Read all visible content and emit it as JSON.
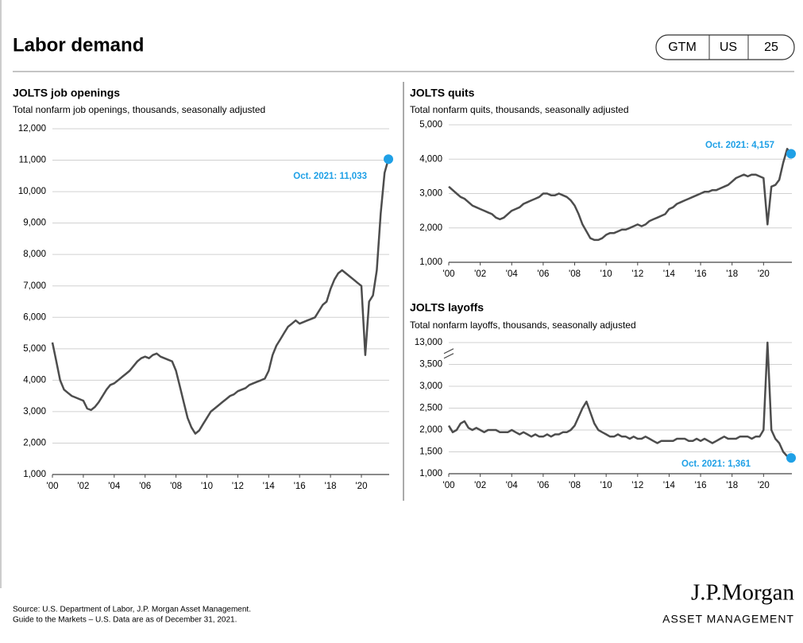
{
  "header": {
    "title": "Labor demand",
    "badge": [
      "GTM",
      "US",
      "25"
    ]
  },
  "chart_data": [
    {
      "type": "line",
      "title": "JOLTS job openings",
      "subtitle": "Total nonfarm job openings, thousands, seasonally adjusted",
      "x": [
        2000,
        2000.25,
        2000.5,
        2000.75,
        2001,
        2001.25,
        2001.5,
        2001.75,
        2002,
        2002.25,
        2002.5,
        2002.75,
        2003,
        2003.25,
        2003.5,
        2003.75,
        2004,
        2004.25,
        2004.5,
        2004.75,
        2005,
        2005.25,
        2005.5,
        2005.75,
        2006,
        2006.25,
        2006.5,
        2006.75,
        2007,
        2007.25,
        2007.5,
        2007.75,
        2008,
        2008.25,
        2008.5,
        2008.75,
        2009,
        2009.25,
        2009.5,
        2009.75,
        2010,
        2010.25,
        2010.5,
        2010.75,
        2011,
        2011.25,
        2011.5,
        2011.75,
        2012,
        2012.25,
        2012.5,
        2012.75,
        2013,
        2013.25,
        2013.5,
        2013.75,
        2014,
        2014.25,
        2014.5,
        2014.75,
        2015,
        2015.25,
        2015.5,
        2015.75,
        2016,
        2016.25,
        2016.5,
        2016.75,
        2017,
        2017.25,
        2017.5,
        2017.75,
        2018,
        2018.25,
        2018.5,
        2018.75,
        2019,
        2019.25,
        2019.5,
        2019.75,
        2020,
        2020.25,
        2020.5,
        2020.75,
        2021,
        2021.25,
        2021.5,
        2021.75
      ],
      "series": [
        {
          "color": "#4d4d4d",
          "values": [
            5200,
            4600,
            4000,
            3700,
            3600,
            3500,
            3450,
            3400,
            3350,
            3100,
            3050,
            3150,
            3300,
            3500,
            3700,
            3850,
            3900,
            4000,
            4100,
            4200,
            4300,
            4450,
            4600,
            4700,
            4750,
            4700,
            4800,
            4850,
            4750,
            4700,
            4650,
            4600,
            4300,
            3800,
            3300,
            2800,
            2500,
            2300,
            2400,
            2600,
            2800,
            3000,
            3100,
            3200,
            3300,
            3400,
            3500,
            3550,
            3650,
            3700,
            3750,
            3850,
            3900,
            3950,
            4000,
            4050,
            4300,
            4800,
            5100,
            5300,
            5500,
            5700,
            5800,
            5900,
            5800,
            5850,
            5900,
            5950,
            6000,
            6200,
            6400,
            6500,
            6900,
            7200,
            7400,
            7500,
            7400,
            7300,
            7200,
            7100,
            7000,
            4800,
            6500,
            6700,
            7500,
            9300,
            10600,
            11033
          ]
        }
      ],
      "annotation": {
        "text": "Oct. 2021: 11,033",
        "color": "#1fa0e6"
      },
      "xlim": [
        2000,
        2021.8
      ],
      "xticks": [
        {
          "value": 2000,
          "label": "'00"
        },
        {
          "value": 2002,
          "label": "'02"
        },
        {
          "value": 2004,
          "label": "'04"
        },
        {
          "value": 2006,
          "label": "'06"
        },
        {
          "value": 2008,
          "label": "'08"
        },
        {
          "value": 2010,
          "label": "'10"
        },
        {
          "value": 2012,
          "label": "'12"
        },
        {
          "value": 2014,
          "label": "'14"
        },
        {
          "value": 2016,
          "label": "'16"
        },
        {
          "value": 2018,
          "label": "'18"
        },
        {
          "value": 2020,
          "label": "'20"
        }
      ],
      "ylim": [
        1000,
        12000
      ],
      "yticks": [
        {
          "value": 1000,
          "label": "1,000"
        },
        {
          "value": 2000,
          "label": "2,000"
        },
        {
          "value": 3000,
          "label": "3,000"
        },
        {
          "value": 4000,
          "label": "4,000"
        },
        {
          "value": 5000,
          "label": "5,000"
        },
        {
          "value": 6000,
          "label": "6,000"
        },
        {
          "value": 7000,
          "label": "7,000"
        },
        {
          "value": 8000,
          "label": "8,000"
        },
        {
          "value": 9000,
          "label": "9,000"
        },
        {
          "value": 10000,
          "label": "10,000"
        },
        {
          "value": 11000,
          "label": "11,000"
        },
        {
          "value": 12000,
          "label": "12,000"
        }
      ],
      "grid": true
    },
    {
      "type": "line",
      "title": "JOLTS quits",
      "subtitle": "Total nonfarm quits, thousands, seasonally adjusted",
      "x": [
        2000,
        2000.25,
        2000.5,
        2000.75,
        2001,
        2001.25,
        2001.5,
        2001.75,
        2002,
        2002.25,
        2002.5,
        2002.75,
        2003,
        2003.25,
        2003.5,
        2003.75,
        2004,
        2004.25,
        2004.5,
        2004.75,
        2005,
        2005.25,
        2005.5,
        2005.75,
        2006,
        2006.25,
        2006.5,
        2006.75,
        2007,
        2007.25,
        2007.5,
        2007.75,
        2008,
        2008.25,
        2008.5,
        2008.75,
        2009,
        2009.25,
        2009.5,
        2009.75,
        2010,
        2010.25,
        2010.5,
        2010.75,
        2011,
        2011.25,
        2011.5,
        2011.75,
        2012,
        2012.25,
        2012.5,
        2012.75,
        2013,
        2013.25,
        2013.5,
        2013.75,
        2014,
        2014.25,
        2014.5,
        2014.75,
        2015,
        2015.25,
        2015.5,
        2015.75,
        2016,
        2016.25,
        2016.5,
        2016.75,
        2017,
        2017.25,
        2017.5,
        2017.75,
        2018,
        2018.25,
        2018.5,
        2018.75,
        2019,
        2019.25,
        2019.5,
        2019.75,
        2020,
        2020.25,
        2020.5,
        2020.75,
        2021,
        2021.25,
        2021.5,
        2021.75
      ],
      "series": [
        {
          "color": "#4d4d4d",
          "values": [
            3200,
            3100,
            3000,
            2900,
            2850,
            2750,
            2650,
            2600,
            2550,
            2500,
            2450,
            2400,
            2300,
            2250,
            2300,
            2400,
            2500,
            2550,
            2600,
            2700,
            2750,
            2800,
            2850,
            2900,
            3000,
            3000,
            2950,
            2950,
            3000,
            2950,
            2900,
            2800,
            2650,
            2400,
            2100,
            1900,
            1700,
            1650,
            1650,
            1700,
            1800,
            1850,
            1850,
            1900,
            1950,
            1950,
            2000,
            2050,
            2100,
            2050,
            2100,
            2200,
            2250,
            2300,
            2350,
            2400,
            2550,
            2600,
            2700,
            2750,
            2800,
            2850,
            2900,
            2950,
            3000,
            3050,
            3050,
            3100,
            3100,
            3150,
            3200,
            3250,
            3350,
            3450,
            3500,
            3550,
            3500,
            3550,
            3550,
            3500,
            3450,
            2100,
            3200,
            3250,
            3400,
            3900,
            4300,
            4157
          ]
        }
      ],
      "annotation": {
        "text": "Oct. 2021: 4,157",
        "color": "#1fa0e6"
      },
      "xlim": [
        2000,
        2021.8
      ],
      "xticks": [
        {
          "value": 2000,
          "label": "'00"
        },
        {
          "value": 2002,
          "label": "'02"
        },
        {
          "value": 2004,
          "label": "'04"
        },
        {
          "value": 2006,
          "label": "'06"
        },
        {
          "value": 2008,
          "label": "'08"
        },
        {
          "value": 2010,
          "label": "'10"
        },
        {
          "value": 2012,
          "label": "'12"
        },
        {
          "value": 2014,
          "label": "'14"
        },
        {
          "value": 2016,
          "label": "'16"
        },
        {
          "value": 2018,
          "label": "'18"
        },
        {
          "value": 2020,
          "label": "'20"
        }
      ],
      "ylim": [
        1000,
        5000
      ],
      "yticks": [
        {
          "value": 1000,
          "label": "1,000"
        },
        {
          "value": 2000,
          "label": "2,000"
        },
        {
          "value": 3000,
          "label": "3,000"
        },
        {
          "value": 4000,
          "label": "4,000"
        },
        {
          "value": 5000,
          "label": "5,000"
        }
      ],
      "grid": true
    },
    {
      "type": "line",
      "title": "JOLTS layoffs",
      "subtitle": "Total nonfarm layoffs, thousands, seasonally adjusted",
      "x": [
        2000,
        2000.25,
        2000.5,
        2000.75,
        2001,
        2001.25,
        2001.5,
        2001.75,
        2002,
        2002.25,
        2002.5,
        2002.75,
        2003,
        2003.25,
        2003.5,
        2003.75,
        2004,
        2004.25,
        2004.5,
        2004.75,
        2005,
        2005.25,
        2005.5,
        2005.75,
        2006,
        2006.25,
        2006.5,
        2006.75,
        2007,
        2007.25,
        2007.5,
        2007.75,
        2008,
        2008.25,
        2008.5,
        2008.75,
        2009,
        2009.25,
        2009.5,
        2009.75,
        2010,
        2010.25,
        2010.5,
        2010.75,
        2011,
        2011.25,
        2011.5,
        2011.75,
        2012,
        2012.25,
        2012.5,
        2012.75,
        2013,
        2013.25,
        2013.5,
        2013.75,
        2014,
        2014.25,
        2014.5,
        2014.75,
        2015,
        2015.25,
        2015.5,
        2015.75,
        2016,
        2016.25,
        2016.5,
        2016.75,
        2017,
        2017.25,
        2017.5,
        2017.75,
        2018,
        2018.25,
        2018.5,
        2018.75,
        2019,
        2019.25,
        2019.5,
        2019.75,
        2020,
        2020.25,
        2020.5,
        2020.75,
        2021,
        2021.25,
        2021.5,
        2021.75
      ],
      "series": [
        {
          "color": "#4d4d4d",
          "values": [
            2100,
            1950,
            2000,
            2150,
            2200,
            2050,
            2000,
            2050,
            2000,
            1950,
            2000,
            2000,
            2000,
            1950,
            1950,
            1950,
            2000,
            1950,
            1900,
            1950,
            1900,
            1850,
            1900,
            1850,
            1850,
            1900,
            1850,
            1900,
            1900,
            1950,
            1950,
            2000,
            2100,
            2300,
            2500,
            2650,
            2400,
            2150,
            2000,
            1950,
            1900,
            1850,
            1850,
            1900,
            1850,
            1850,
            1800,
            1850,
            1800,
            1800,
            1850,
            1800,
            1750,
            1700,
            1750,
            1750,
            1750,
            1750,
            1800,
            1800,
            1800,
            1750,
            1750,
            1800,
            1750,
            1800,
            1750,
            1700,
            1750,
            1800,
            1850,
            1800,
            1800,
            1800,
            1850,
            1850,
            1850,
            1800,
            1850,
            1850,
            2000,
            13000,
            2000,
            1800,
            1700,
            1500,
            1400,
            1361
          ]
        }
      ],
      "annotation": {
        "text": "Oct. 2021: 1,361",
        "color": "#1fa0e6"
      },
      "xlim": [
        2000,
        2021.8
      ],
      "xticks": [
        {
          "value": 2000,
          "label": "'00"
        },
        {
          "value": 2002,
          "label": "'02"
        },
        {
          "value": 2004,
          "label": "'04"
        },
        {
          "value": 2006,
          "label": "'06"
        },
        {
          "value": 2008,
          "label": "'08"
        },
        {
          "value": 2010,
          "label": "'10"
        },
        {
          "value": 2012,
          "label": "'12"
        },
        {
          "value": 2014,
          "label": "'14"
        },
        {
          "value": 2016,
          "label": "'16"
        },
        {
          "value": 2018,
          "label": "'18"
        },
        {
          "value": 2020,
          "label": "'20"
        }
      ],
      "ylim": [
        1000,
        13000
      ],
      "y_break": true,
      "yticks": [
        {
          "value": 1000,
          "label": "1,000"
        },
        {
          "value": 1500,
          "label": "1,500"
        },
        {
          "value": 2000,
          "label": "2,000"
        },
        {
          "value": 2500,
          "label": "2,500"
        },
        {
          "value": 3000,
          "label": "3,000"
        },
        {
          "value": 3500,
          "label": "3,500"
        },
        {
          "value": 13000,
          "label": "13,000"
        }
      ],
      "grid": true
    }
  ],
  "footer": {
    "source": [
      "Source: U.S. Department of Labor, J.P. Morgan Asset Management.",
      "Guide to the Markets – U.S. Data are as of December 31, 2021."
    ]
  },
  "logo": {
    "name": "J.P.Morgan",
    "sub": "ASSET MANAGEMENT"
  }
}
